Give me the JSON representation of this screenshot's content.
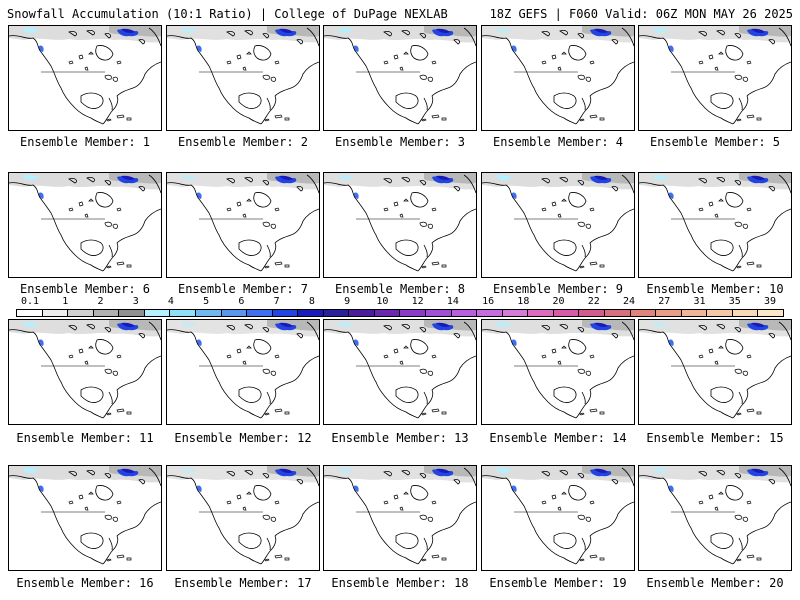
{
  "header": {
    "left": "Snowfall Accumulation (10:1 Ratio) | College of DuPage NEXLAB",
    "right": "18Z GEFS | F060 Valid: 06Z MON MAY 26 2025"
  },
  "legend": {
    "ticks": [
      "0.1",
      "1",
      "2",
      "3",
      "4",
      "5",
      "6",
      "7",
      "8",
      "9",
      "10",
      "12",
      "14",
      "16",
      "18",
      "20",
      "22",
      "24",
      "27",
      "31",
      "35",
      "39"
    ],
    "colors": [
      "#ffffff",
      "#eeeeee",
      "#d0d0d0",
      "#b0b0b0",
      "#909090",
      "#b4f0ff",
      "#8ee0f8",
      "#70b8f0",
      "#5a96ee",
      "#3f6ff0",
      "#2244e0",
      "#1a1ab8",
      "#2a1f9a",
      "#4b1d9e",
      "#6a28b0",
      "#8a3ac8",
      "#a24fd8",
      "#b85fe0",
      "#c86ddf",
      "#d67ad9",
      "#dd6bc0",
      "#d85aa8",
      "#d4598f",
      "#d86f7e",
      "#e0847b",
      "#e89c8a",
      "#efb49a",
      "#f4c8a8",
      "#f8d9b8",
      "#fbe8c8"
    ]
  },
  "members": [
    {
      "label": "Ensemble Member: 1"
    },
    {
      "label": "Ensemble Member: 2"
    },
    {
      "label": "Ensemble Member: 3"
    },
    {
      "label": "Ensemble Member: 4"
    },
    {
      "label": "Ensemble Member: 5"
    },
    {
      "label": "Ensemble Member: 6"
    },
    {
      "label": "Ensemble Member: 7"
    },
    {
      "label": "Ensemble Member: 8"
    },
    {
      "label": "Ensemble Member: 9"
    },
    {
      "label": "Ensemble Member: 10"
    },
    {
      "label": "Ensemble Member: 11"
    },
    {
      "label": "Ensemble Member: 12"
    },
    {
      "label": "Ensemble Member: 13"
    },
    {
      "label": "Ensemble Member: 14"
    },
    {
      "label": "Ensemble Member: 15"
    },
    {
      "label": "Ensemble Member: 16"
    },
    {
      "label": "Ensemble Member: 17"
    },
    {
      "label": "Ensemble Member: 18"
    },
    {
      "label": "Ensemble Member: 19"
    },
    {
      "label": "Ensemble Member: 20"
    }
  ]
}
